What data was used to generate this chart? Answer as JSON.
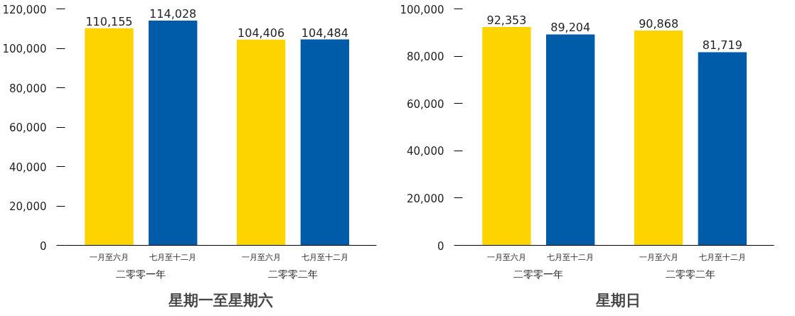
{
  "chart_data": [
    {
      "type": "bar",
      "title": "星期一至星期六",
      "categories": [
        "二零零一年",
        "二零零二年"
      ],
      "grid": false,
      "series": [
        {
          "name": "一月至六月",
          "color": "#fdd400",
          "values": [
            110155,
            104406
          ],
          "value_labels": [
            "110,155",
            "104,406"
          ]
        },
        {
          "name": "七月至十二月",
          "color": "#005ba9",
          "values": [
            114028,
            104484
          ],
          "value_labels": [
            "114,028",
            "104,484"
          ]
        }
      ],
      "ylim": [
        0,
        120000
      ],
      "yticks": [
        {
          "value": 0,
          "label": "0"
        },
        {
          "value": 20000,
          "label": "20,000"
        },
        {
          "value": 40000,
          "label": "40,000"
        },
        {
          "value": 60000,
          "label": "60,000"
        },
        {
          "value": 80000,
          "label": "80,000"
        },
        {
          "value": 100000,
          "label": "100,000"
        },
        {
          "value": 120000,
          "label": "120,000"
        }
      ]
    },
    {
      "type": "bar",
      "title": "星期日",
      "categories": [
        "二零零一年",
        "二零零二年"
      ],
      "grid": false,
      "series": [
        {
          "name": "一月至六月",
          "color": "#fdd400",
          "values": [
            92353,
            90868
          ],
          "value_labels": [
            "92,353",
            "90,868"
          ]
        },
        {
          "name": "七月至十二月",
          "color": "#005ba9",
          "values": [
            89204,
            81719
          ],
          "value_labels": [
            "89,204",
            "81,719"
          ]
        }
      ],
      "ylim": [
        0,
        100000
      ],
      "yticks": [
        {
          "value": 0,
          "label": "0"
        },
        {
          "value": 20000,
          "label": "20,000"
        },
        {
          "value": 40000,
          "label": "40,000"
        },
        {
          "value": 60000,
          "label": "60,000"
        },
        {
          "value": 80000,
          "label": "80,000"
        },
        {
          "value": 100000,
          "label": "100,000"
        }
      ]
    }
  ]
}
